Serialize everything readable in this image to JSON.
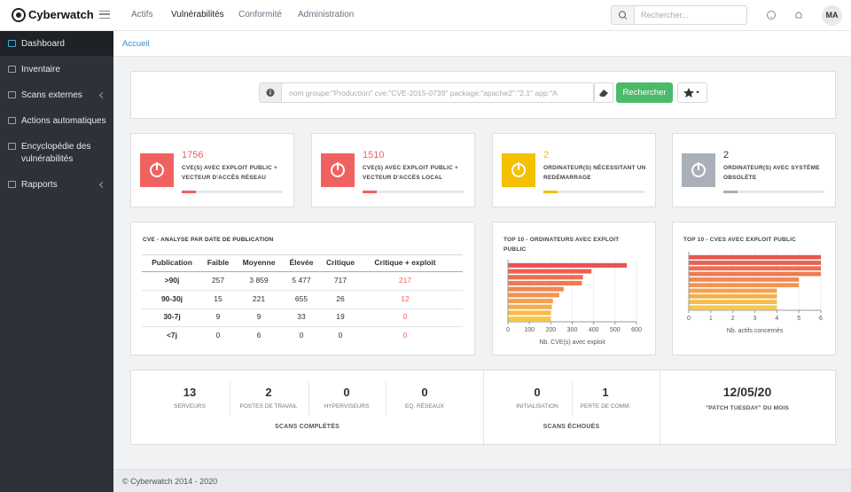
{
  "header": {
    "brand": "Cyberwatch",
    "nav": [
      "Actifs",
      "Vulnérabilités",
      "Conformité",
      "Administration"
    ],
    "search_placeholder": "Rechercher...",
    "avatar": "MA"
  },
  "sidebar": {
    "items": [
      "Dashboard",
      "Inventaire",
      "Scans externes",
      "Actions automatiques",
      "Encyclopédie des vulnérabilités",
      "Rapports"
    ]
  },
  "breadcrumb": "Accueil",
  "search_bar": {
    "placeholder": "nom groupe:\"Production\" cve:\"CVE-2015-0739\" package:\"apache2\":\"2.1\" app:\"A",
    "button": "Rechercher"
  },
  "stat_cards": [
    {
      "value": "1756",
      "label": "CVE(S) AVEC EXPLOIT PUBLIC + VECTEUR D'ACCÈS RÉSEAU",
      "icon_color": "#f0625f",
      "value_color": "#f0625f"
    },
    {
      "value": "1510",
      "label": "CVE(S) AVEC EXPLOIT PUBLIC + VECTEUR D'ACCÈS LOCAL",
      "icon_color": "#f0625f",
      "value_color": "#f0625f"
    },
    {
      "value": "2",
      "label": "ORDINATEUR(S) NÉCESSITANT UN REDÉMARRAGE",
      "icon_color": "#f5c000",
      "value_color": "#f5c000"
    },
    {
      "value": "2",
      "label": "ORDINATEUR(S) AVEC SYSTÈME OBSOLÈTE",
      "icon_color": "#aab0b8",
      "value_color": "#2d3238"
    }
  ],
  "cve_table": {
    "title": "CVE - ANALYSE PAR DATE DE PUBLICATION",
    "columns": [
      "Publication",
      "Faible",
      "Moyenne",
      "Élevée",
      "Critique",
      "Critique + exploit"
    ],
    "rows": [
      [
        ">90j",
        "257",
        "3 859",
        "5 477",
        "717",
        "217"
      ],
      [
        "90-30j",
        "15",
        "221",
        "655",
        "26",
        "12"
      ],
      [
        "30-7j",
        "9",
        "9",
        "33",
        "19",
        "0"
      ],
      [
        "<7j",
        "0",
        "6",
        "0",
        "0",
        "0"
      ]
    ]
  },
  "chart_data": [
    {
      "type": "bar",
      "orientation": "horizontal",
      "title": "TOP 10 - ORDINATEURS AVEC EXPLOIT PUBLIC",
      "categories": [
        null,
        null,
        null,
        null,
        null,
        null,
        null,
        null,
        null,
        null
      ],
      "values": [
        555,
        390,
        350,
        345,
        260,
        240,
        210,
        205,
        200,
        200
      ],
      "colors": [
        "#e9534f",
        "#ec6050",
        "#ee6d50",
        "#f07a50",
        "#f28750",
        "#f39450",
        "#f4a14e",
        "#f5ae4c",
        "#f6bb4a",
        "#f7c848"
      ],
      "xlabel": "Nb. CVE(s) avec exploit",
      "xlim": [
        0,
        600
      ],
      "xticks": [
        0,
        100,
        200,
        300,
        400,
        500,
        600
      ],
      "grid": true
    },
    {
      "type": "bar",
      "orientation": "horizontal",
      "title": "TOP 10 - CVES AVEC EXPLOIT PUBLIC",
      "categories": [
        null,
        null,
        null,
        null,
        null,
        null,
        null,
        null,
        null,
        null
      ],
      "values": [
        6,
        6,
        6,
        6,
        5,
        5,
        4,
        4,
        4,
        4
      ],
      "colors": [
        "#e9534f",
        "#ec6050",
        "#ee6d50",
        "#f07a50",
        "#f28750",
        "#f39450",
        "#f4a14e",
        "#f5ae4c",
        "#f6bb4a",
        "#f7c848"
      ],
      "xlabel": "Nb. actifs concernés",
      "xlim": [
        0,
        6
      ],
      "xticks": [
        0,
        1,
        2,
        3,
        4,
        5,
        6
      ],
      "grid": true
    }
  ],
  "scans": {
    "completed": {
      "items": [
        {
          "value": "13",
          "label": "SERVEURS"
        },
        {
          "value": "2",
          "label": "POSTES DE TRAVAIL"
        },
        {
          "value": "0",
          "label": "HYPERVISEURS"
        },
        {
          "value": "0",
          "label": "EQ. RÉSEAUX"
        }
      ],
      "caption": "SCANS COMPLÉTÉS"
    },
    "failed": {
      "items": [
        {
          "value": "0",
          "label": "INITIALISATION"
        },
        {
          "value": "1",
          "label": "PERTE DE COMM."
        }
      ],
      "caption": "SCANS ÉCHOUÉS"
    },
    "patch_tuesday": {
      "date": "12/05/20",
      "label": "\"PATCH TUESDAY\" DU MOIS"
    }
  },
  "footer": "© Cyberwatch 2014 - 2020"
}
